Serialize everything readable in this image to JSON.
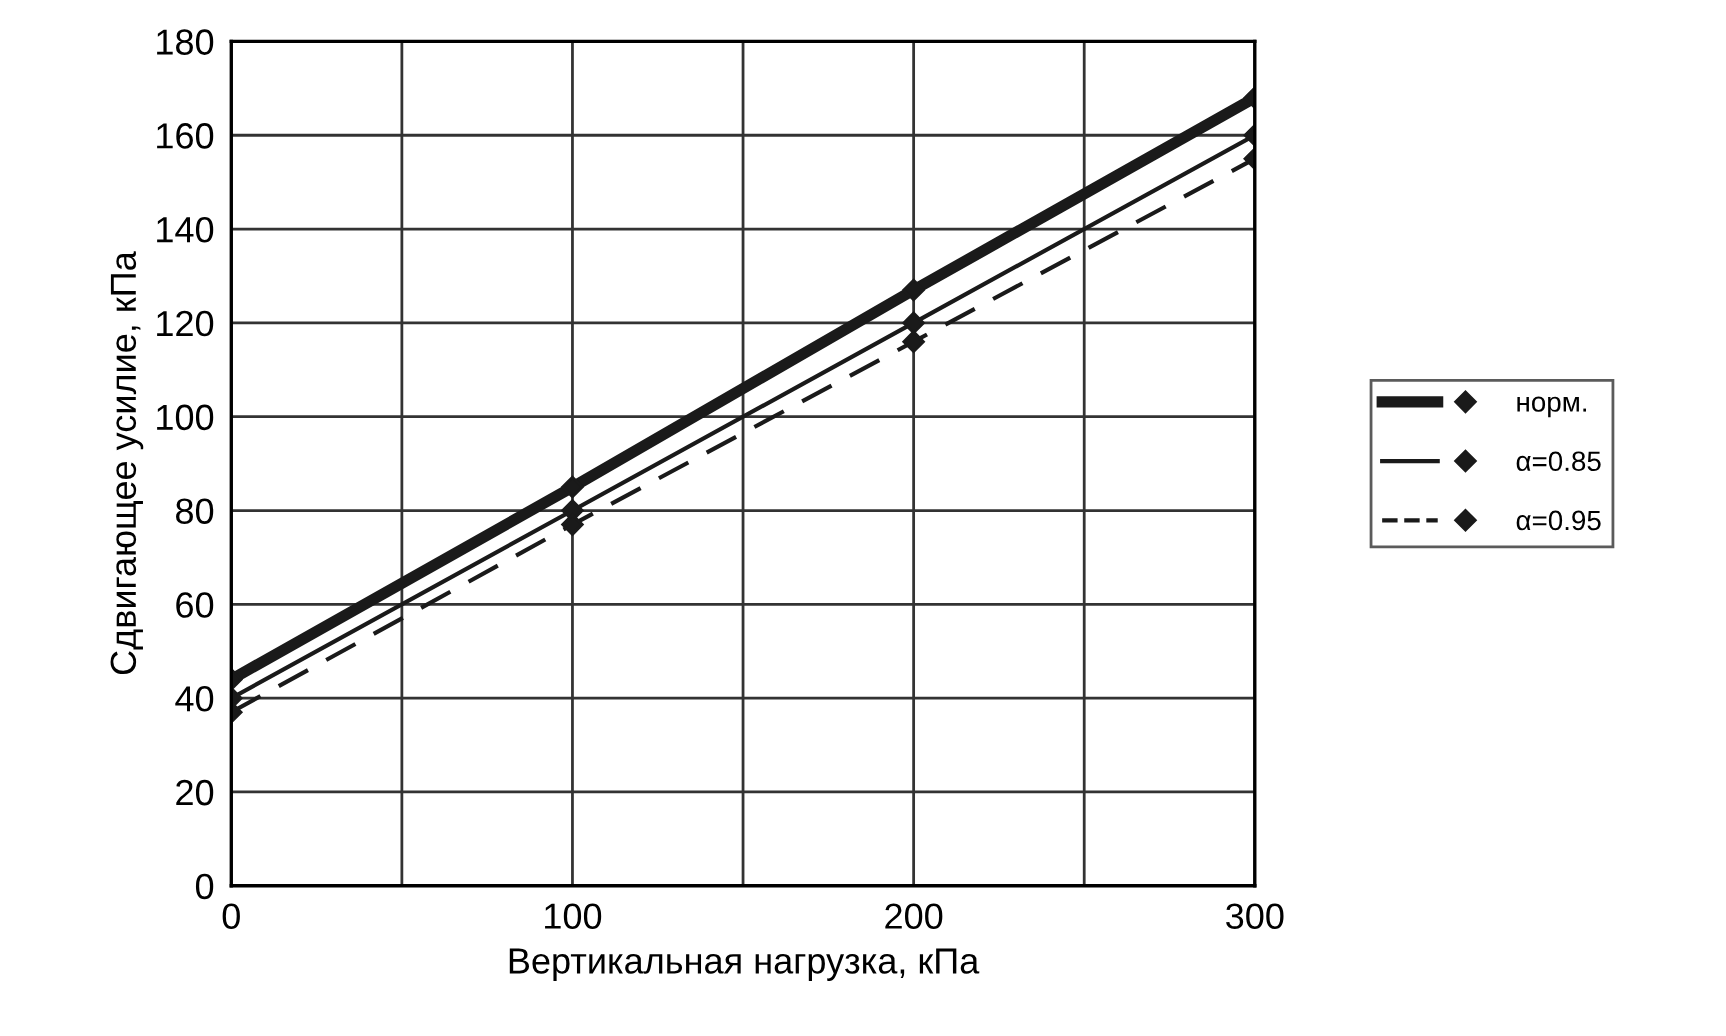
{
  "chart_data": {
    "type": "line",
    "x": [
      0,
      100,
      200,
      300
    ],
    "series": [
      {
        "name": "норм.",
        "color": "#1a1a1a",
        "values": [
          44,
          85,
          127,
          168
        ],
        "line_style": "solid"
      },
      {
        "name": "α=0.85",
        "color": "#1a1a1a",
        "values": [
          40,
          80,
          120,
          160
        ],
        "line_style": "solid"
      },
      {
        "name": "α=0.95",
        "color": "#1a1a1a",
        "values": [
          37,
          77,
          116,
          155
        ],
        "line_style": "dashed"
      }
    ],
    "xlabel": "Вертикальная нагрузка, кПа",
    "ylabel": "Сдвигающее усилие, кПа",
    "xlim": [
      0,
      300
    ],
    "ylim": [
      0,
      180
    ],
    "xticks": [
      0,
      {
        "value": 50,
        "label": null
      },
      100,
      {
        "value": 150,
        "label": null
      },
      200,
      {
        "value": 250,
        "label": null
      },
      300
    ],
    "yticks": [
      0,
      20,
      40,
      60,
      80,
      100,
      120,
      140,
      160,
      180
    ],
    "grid": true,
    "legend": "right",
    "marker": "diamond"
  }
}
